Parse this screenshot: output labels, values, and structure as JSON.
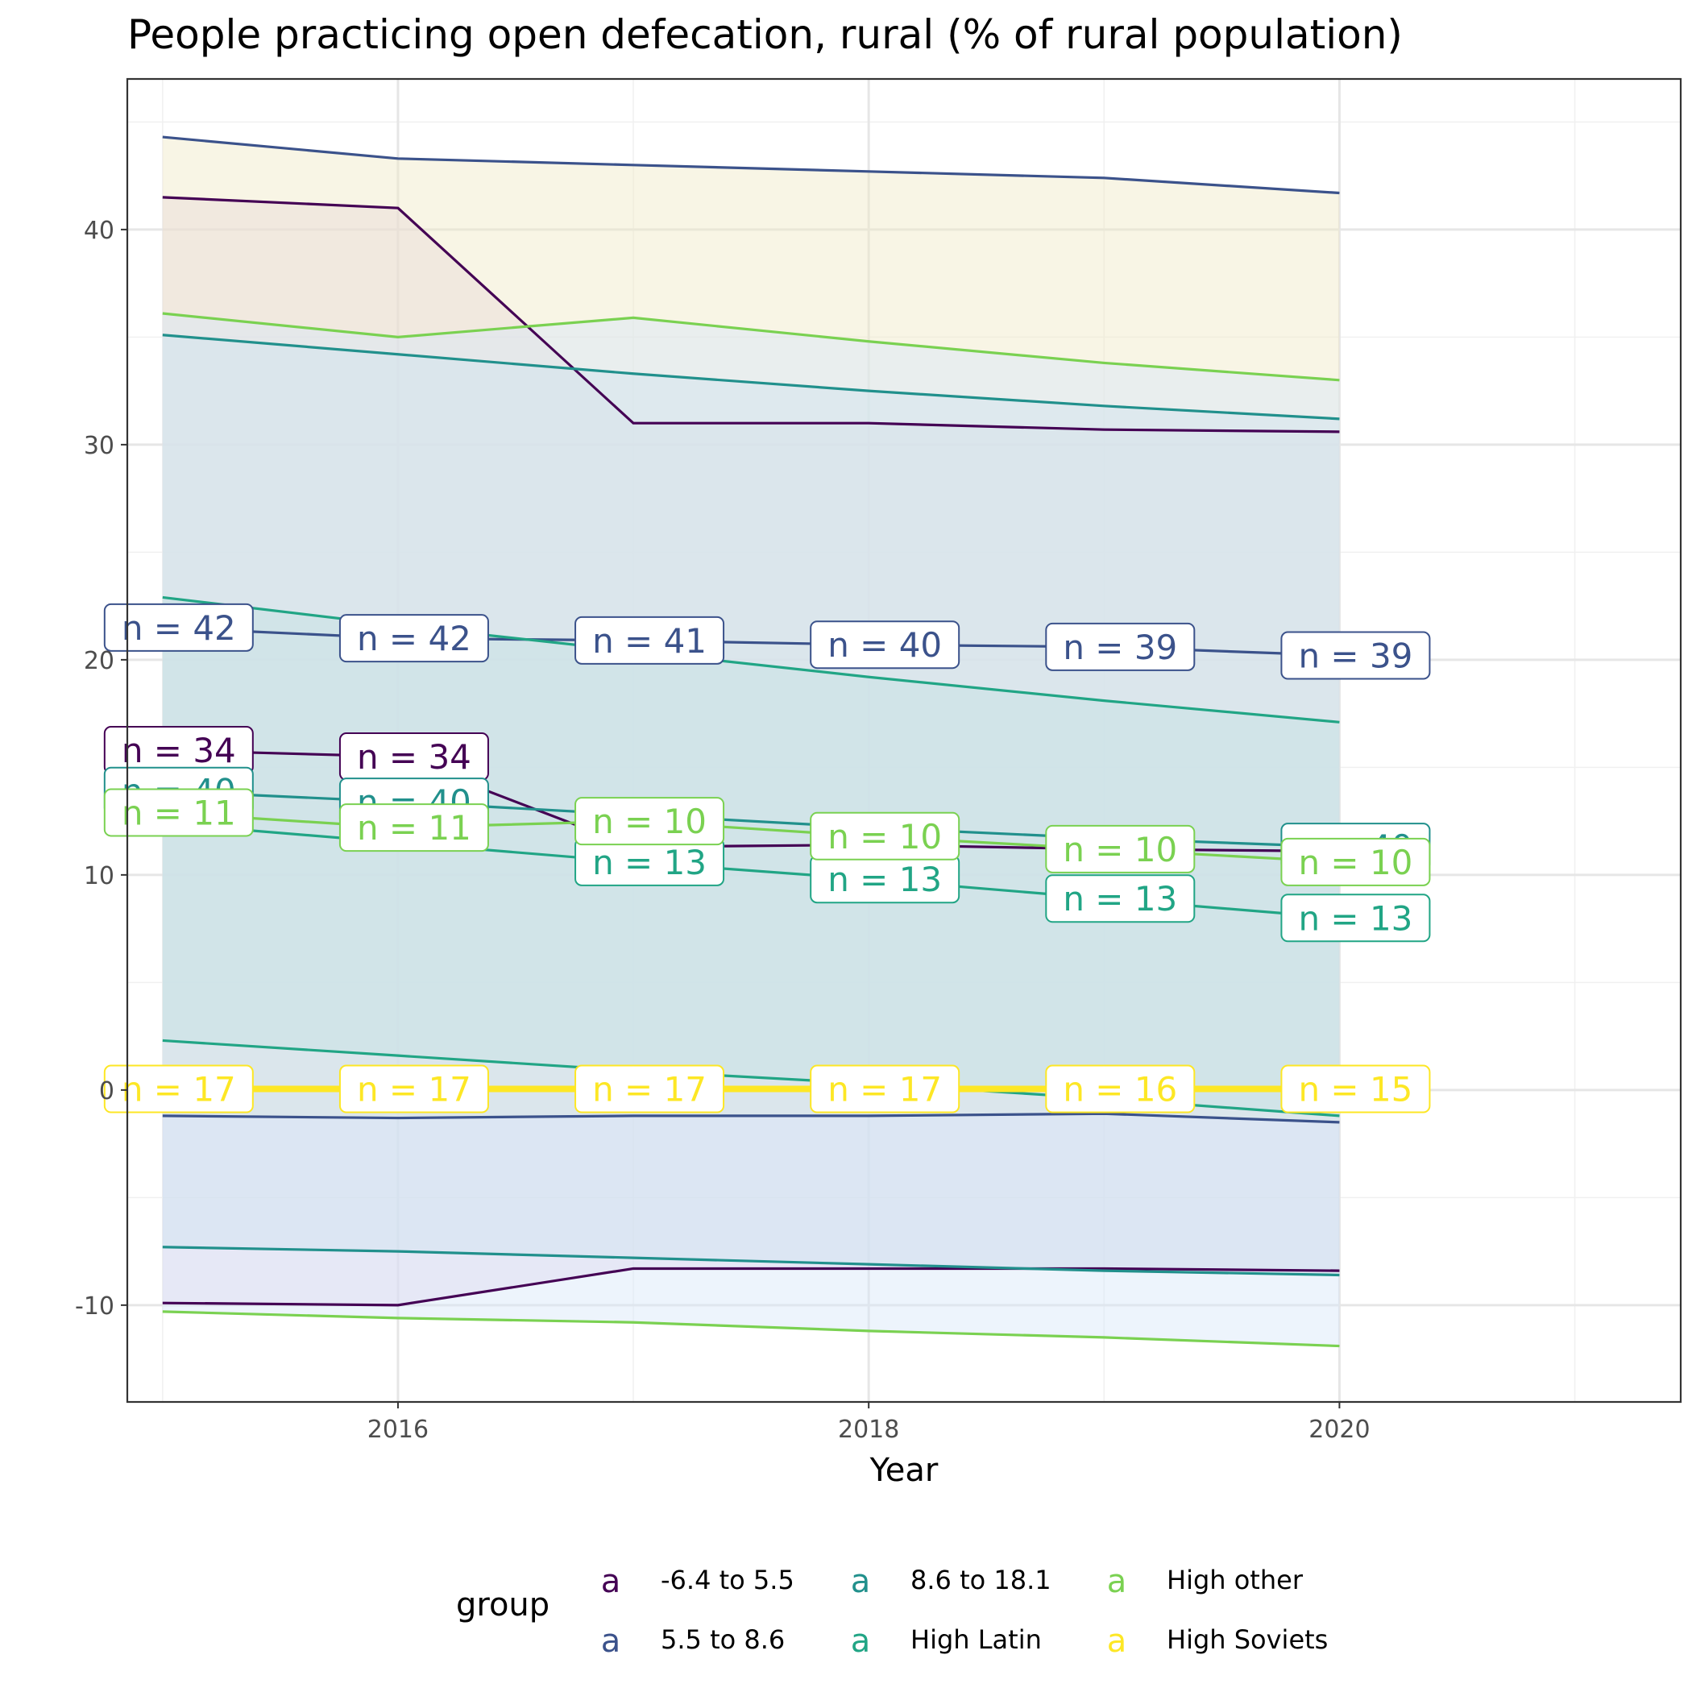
{
  "chart_data": {
    "type": "line",
    "title": "People practicing open defecation, rural (% of rural population)",
    "xlabel": "Year",
    "ylabel": "",
    "xlim": [
      2014.85,
      2021.45
    ],
    "ylim": [
      -14.5,
      47
    ],
    "x_ticks": [
      2016,
      2018,
      2020
    ],
    "y_ticks": [
      -10,
      0,
      10,
      20,
      30,
      40
    ],
    "y_tick_labels": [
      "-10",
      "0",
      "10",
      "20",
      "30",
      "40"
    ],
    "x_tick_labels": [
      "2016",
      "2018",
      "2020"
    ],
    "grid": true,
    "legend_position": "bottom",
    "legend_title": "group",
    "legend_key_glyph": "a",
    "x": [
      2015,
      2016,
      2017,
      2018,
      2019,
      2020
    ],
    "series": [
      {
        "name": "-6.4 to 5.5",
        "color": "#440154",
        "mean": [
          15.8,
          15.5,
          11.3,
          11.4,
          11.2,
          11.1
        ],
        "upper": [
          41.5,
          41.0,
          31.0,
          31.0,
          30.7,
          30.6
        ],
        "lower": [
          -9.9,
          -10.0,
          -8.3,
          -8.3,
          -8.3,
          -8.4
        ],
        "n_labels": [
          "n = 34",
          "n = 34",
          "",
          "",
          "",
          ""
        ]
      },
      {
        "name": "5.5 to 8.6",
        "color": "#3b528b",
        "mean": [
          21.5,
          21.0,
          20.9,
          20.7,
          20.6,
          20.2
        ],
        "upper": [
          44.3,
          43.3,
          43.0,
          42.7,
          42.4,
          41.7
        ],
        "lower": [
          -1.2,
          -1.3,
          -1.2,
          -1.2,
          -1.1,
          -1.5
        ],
        "n_labels": [
          "n = 42",
          "n = 42",
          "n = 41",
          "n = 40",
          "n = 39",
          "n = 39"
        ]
      },
      {
        "name": "8.6 to 18.1",
        "color": "#21908c",
        "mean": [
          13.9,
          13.4,
          12.8,
          12.2,
          11.7,
          11.3
        ],
        "upper": [
          35.1,
          34.2,
          33.3,
          32.5,
          31.8,
          31.2
        ],
        "lower": [
          -7.3,
          -7.5,
          -7.8,
          -8.1,
          -8.4,
          -8.6
        ],
        "n_labels": [
          "n = 40",
          "n = 40",
          "",
          "",
          "",
          "n = 40"
        ]
      },
      {
        "name": "High Latin",
        "color": "#21a585",
        "mean": [
          12.4,
          11.5,
          10.6,
          9.8,
          8.9,
          8.0
        ],
        "upper": [
          22.9,
          21.6,
          20.4,
          19.2,
          18.1,
          17.1
        ],
        "lower": [
          2.3,
          1.6,
          0.9,
          0.3,
          -0.4,
          -1.2
        ],
        "n_labels": [
          "",
          "",
          "n = 13",
          "n = 13",
          "n = 13",
          "n = 13"
        ]
      },
      {
        "name": "High other",
        "color": "#7ad151",
        "mean": [
          12.9,
          12.2,
          12.5,
          11.8,
          11.2,
          10.6
        ],
        "upper": [
          36.1,
          35.0,
          35.9,
          34.8,
          33.8,
          33.0
        ],
        "lower": [
          -10.3,
          -10.6,
          -10.8,
          -11.2,
          -11.5,
          -11.9
        ],
        "n_labels": [
          "n = 11",
          "n = 11",
          "n = 10",
          "n = 10",
          "n = 10",
          "n = 10"
        ]
      },
      {
        "name": "High Soviets",
        "color": "#fde725",
        "mean": [
          0.05,
          0.05,
          0.05,
          0.05,
          0.05,
          0.05
        ],
        "upper": [
          0.05,
          0.05,
          0.05,
          0.05,
          0.05,
          0.05
        ],
        "lower": [
          0.05,
          0.05,
          0.05,
          0.05,
          0.05,
          0.05
        ],
        "n_labels": [
          "n = 17",
          "n = 17",
          "n = 17",
          "n = 17",
          "n = 16",
          "n = 15"
        ]
      }
    ],
    "ribbon_fills": [
      "#e3cfe9",
      "#f0e9c6",
      "#c9e3e6",
      "#b5ddd2",
      "#d8e6f8",
      "#f6f0d8"
    ]
  }
}
